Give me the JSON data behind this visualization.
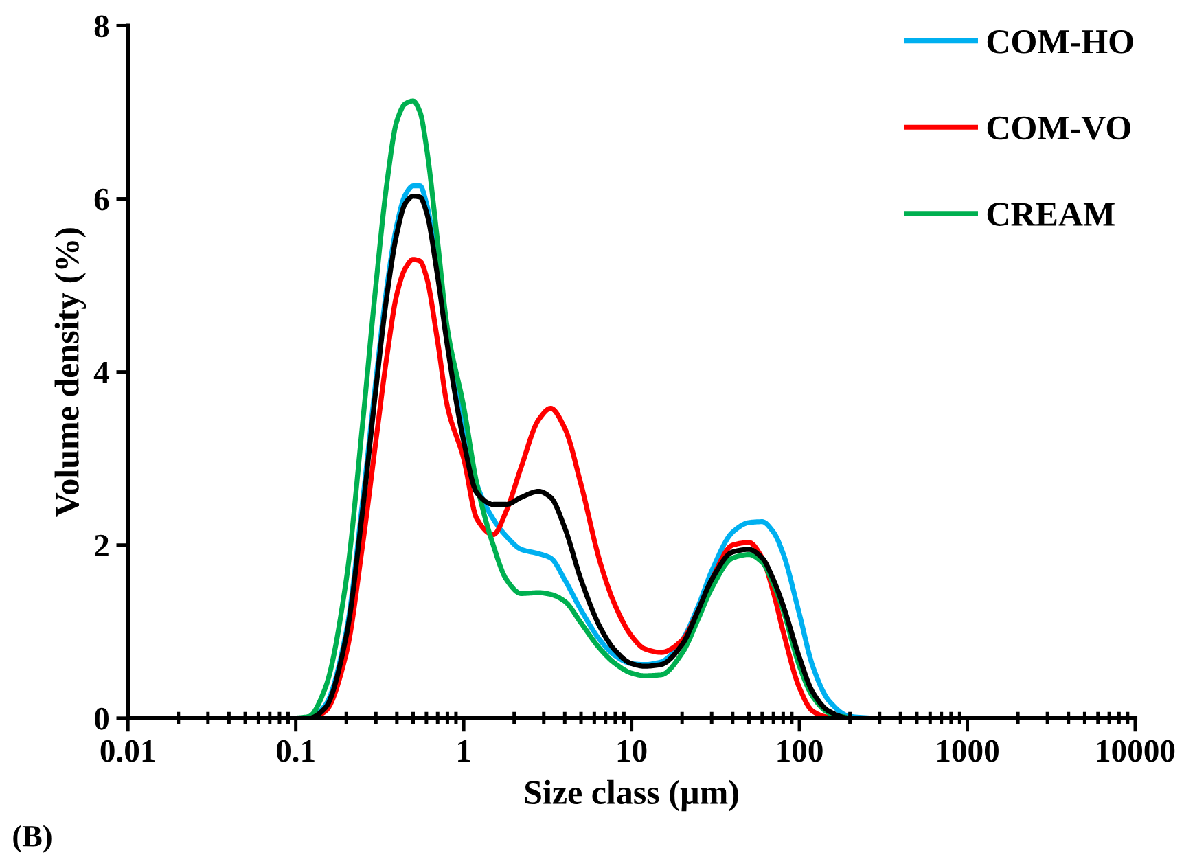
{
  "chart_data": {
    "type": "line",
    "xlabel": "Size class (µm)",
    "ylabel": "Volume density (%)",
    "annotations": [
      "(B)"
    ],
    "log": "x",
    "xlim": [
      0.01,
      10000
    ],
    "xticks": [
      {
        "value": 0.01,
        "label": "0.01"
      },
      {
        "value": 0.1,
        "label": "0.1"
      },
      {
        "value": 1,
        "label": "1"
      },
      {
        "value": 10,
        "label": "10"
      },
      {
        "value": 100,
        "label": "100"
      },
      {
        "value": 1000,
        "label": "1000"
      },
      {
        "value": 10000,
        "label": "10000"
      }
    ],
    "ylim": [
      0,
      8
    ],
    "yticks": [
      0,
      2,
      4,
      6,
      8
    ],
    "grid": false,
    "legend": "top right",
    "marker": "none",
    "line_style": "solid",
    "x": [
      0.1,
      0.12,
      0.15,
      0.2,
      0.25,
      0.3,
      0.35,
      0.4,
      0.45,
      0.5,
      0.55,
      0.6,
      0.7,
      0.8,
      1,
      1.2,
      1.5,
      1.8,
      2.2,
      2.8,
      3.3,
      4,
      5,
      6.5,
      8,
      10,
      12,
      15,
      20,
      25,
      30,
      40,
      50,
      60,
      70,
      80,
      100,
      120,
      150,
      200,
      300,
      1000,
      10000
    ],
    "series": [
      {
        "name": "COM-HO",
        "color": "#00b0f0",
        "values": [
          0,
          0,
          0.15,
          1.0,
          2.5,
          3.9,
          5.0,
          5.7,
          6.05,
          6.15,
          6.15,
          5.95,
          5.2,
          4.4,
          3.4,
          2.7,
          2.3,
          2.1,
          1.95,
          1.9,
          1.85,
          1.6,
          1.25,
          0.9,
          0.72,
          0.63,
          0.62,
          0.65,
          0.9,
          1.3,
          1.7,
          2.15,
          2.26,
          2.27,
          2.15,
          1.9,
          1.2,
          0.6,
          0.2,
          0.02,
          0,
          0,
          0
        ]
      },
      {
        "name": "COM-VO",
        "color": "#ff0000",
        "values": [
          0,
          0,
          0.08,
          0.75,
          2.0,
          3.2,
          4.2,
          4.9,
          5.2,
          5.3,
          5.28,
          5.1,
          4.35,
          3.6,
          3.0,
          2.3,
          2.12,
          2.4,
          2.9,
          3.45,
          3.58,
          3.35,
          2.7,
          1.8,
          1.3,
          0.95,
          0.8,
          0.76,
          0.9,
          1.25,
          1.6,
          2.0,
          2.03,
          1.85,
          1.45,
          1.0,
          0.35,
          0.08,
          0.01,
          0,
          null,
          null,
          null
        ]
      },
      {
        "name": "CREAM",
        "color": "#00b050",
        "values": [
          0,
          0.02,
          0.35,
          1.6,
          3.4,
          5.0,
          6.2,
          6.9,
          7.1,
          7.13,
          7.0,
          6.6,
          5.5,
          4.5,
          3.6,
          2.7,
          2.0,
          1.6,
          1.44,
          1.45,
          1.43,
          1.35,
          1.1,
          0.8,
          0.63,
          0.52,
          0.49,
          0.5,
          0.75,
          1.15,
          1.5,
          1.85,
          1.89,
          1.8,
          1.55,
          1.25,
          0.6,
          0.25,
          0.06,
          0,
          null,
          null,
          null
        ]
      },
      {
        "color": "#000000",
        "values": [
          0,
          0,
          0.12,
          0.95,
          2.4,
          3.8,
          4.9,
          5.6,
          5.95,
          6.03,
          6.02,
          5.85,
          5.1,
          4.3,
          3.2,
          2.6,
          2.47,
          2.47,
          2.55,
          2.62,
          2.55,
          2.2,
          1.6,
          1.05,
          0.78,
          0.63,
          0.6,
          0.62,
          0.85,
          1.25,
          1.6,
          1.92,
          1.95,
          1.85,
          1.6,
          1.3,
          0.7,
          0.3,
          0.08,
          0,
          0,
          0,
          0
        ]
      }
    ]
  }
}
